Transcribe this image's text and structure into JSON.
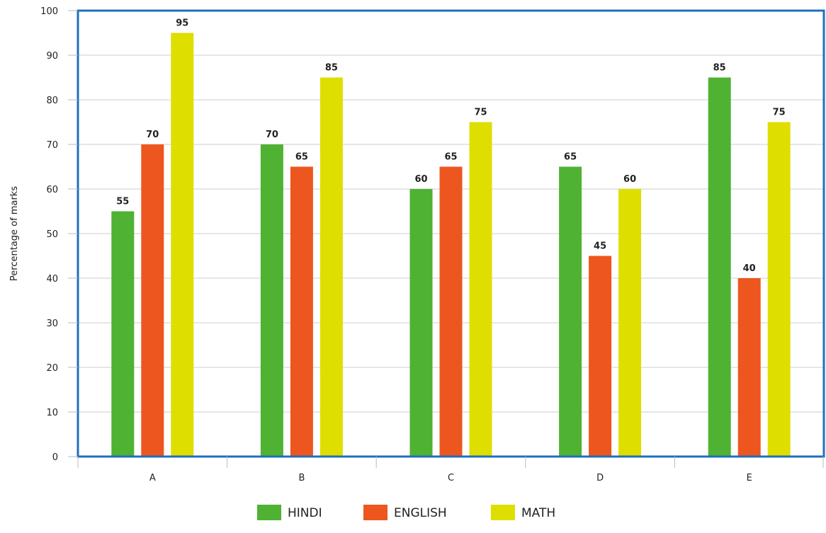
{
  "chart_data": {
    "type": "bar",
    "title": "",
    "xlabel": "",
    "ylabel": "Percentage of marks",
    "categories": [
      "A",
      "B",
      "C",
      "D",
      "E"
    ],
    "series": [
      {
        "name": "HINDI",
        "color": "#4fb233",
        "values": [
          55,
          70,
          60,
          65,
          85
        ]
      },
      {
        "name": "ENGLISH",
        "color": "#ee561f",
        "values": [
          70,
          65,
          65,
          45,
          40
        ]
      },
      {
        "name": "MATH",
        "color": "#dede00",
        "values": [
          95,
          85,
          75,
          60,
          75
        ]
      }
    ],
    "ylim": [
      0,
      100
    ],
    "yticks": [
      "0",
      "10",
      "20",
      "30",
      "40",
      "50",
      "60",
      "70",
      "80",
      "90",
      "100"
    ],
    "grid": true,
    "legend_position": "bottom",
    "data_labels": true,
    "plot_border_color": "#1f6fbf",
    "grid_color": "#cccccc"
  }
}
